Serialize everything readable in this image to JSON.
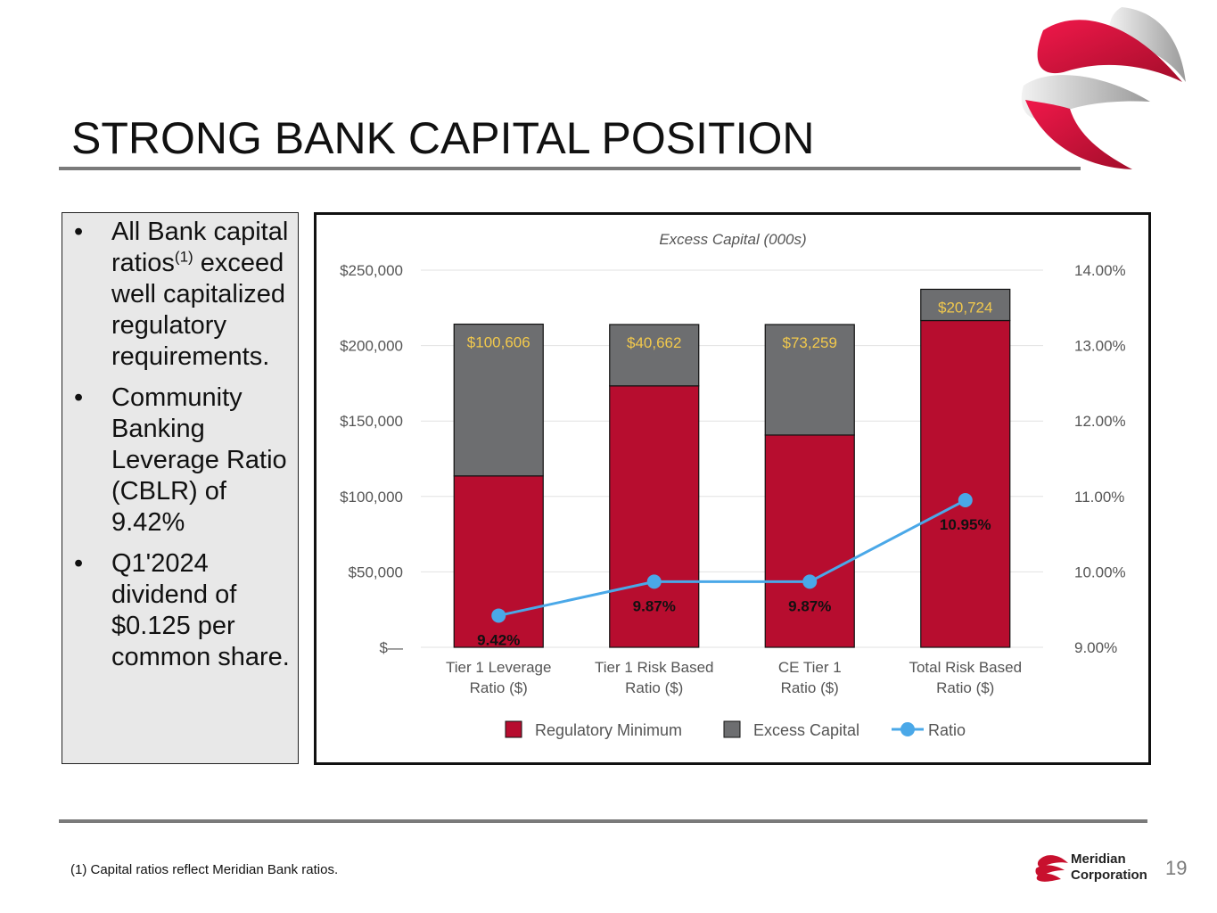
{
  "page": {
    "title": "STRONG BANK CAPITAL POSITION",
    "page_number": "19",
    "footnote": "(1) Capital ratios reflect Meridian Bank ratios.",
    "company": {
      "line1": "Meridian",
      "line2": "Corporation"
    },
    "colors": {
      "brand_red": "#b70d2f",
      "gray": "#6d6e70",
      "line_blue": "#4aa8e8"
    }
  },
  "bullets": [
    {
      "text": "All Bank capital ratios",
      "sup": "(1)",
      "text_after": " exceed well capitalized regulatory requirements."
    },
    {
      "text": "Community Banking Leverage Ratio (CBLR) of 9.42%"
    },
    {
      "text": "Q1'2024 dividend of $0.125 per common share."
    }
  ],
  "chart_data": {
    "type": "bar",
    "stacked": true,
    "title": "Excess Capital (000s)",
    "categories": [
      [
        "Tier 1 Leverage",
        "Ratio ($)"
      ],
      [
        "Tier 1 Risk Based",
        "Ratio ($)"
      ],
      [
        "CE Tier 1",
        "Ratio ($)"
      ],
      [
        "Total Risk Based",
        "Ratio ($)"
      ]
    ],
    "series": [
      {
        "name": "Regulatory Minimum",
        "axis": "left",
        "color": "#b70d2f",
        "values": [
          113600,
          173300,
          140700,
          216600
        ]
      },
      {
        "name": "Excess Capital",
        "axis": "left",
        "color": "#6d6e70",
        "values": [
          100606,
          40662,
          73259,
          20724
        ]
      },
      {
        "name": "Ratio",
        "axis": "right",
        "type": "line",
        "color": "#4aa8e8",
        "values": [
          9.42,
          9.87,
          9.87,
          10.95
        ]
      }
    ],
    "bar_labels": [
      "$100,606",
      "$40,662",
      "$73,259",
      "$20,724"
    ],
    "ratio_labels": [
      "9.42%",
      "9.87%",
      "9.87%",
      "10.95%"
    ],
    "y_left": {
      "min": 0,
      "max": 250000,
      "ticks": [
        0,
        50000,
        100000,
        150000,
        200000,
        250000
      ],
      "tick_labels": [
        "$—",
        "$50,000",
        "$100,000",
        "$150,000",
        "$200,000",
        "$250,000"
      ]
    },
    "y_right": {
      "min": 9,
      "max": 14,
      "ticks": [
        9,
        10,
        11,
        12,
        13,
        14
      ],
      "tick_labels": [
        "9.00%",
        "10.00%",
        "11.00%",
        "12.00%",
        "13.00%",
        "14.00%"
      ]
    },
    "legend": {
      "position": "bottom",
      "items": [
        "Regulatory Minimum",
        "Excess Capital",
        "Ratio"
      ]
    },
    "grid": true
  }
}
